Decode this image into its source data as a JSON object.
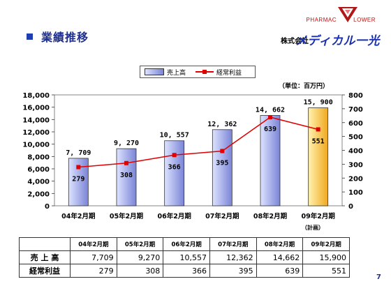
{
  "header": {
    "title": "業績推移",
    "logo_top_left": "PHARMAC",
    "logo_top_right": "LOWER",
    "company_prefix": "株式会社",
    "company_name": "メディカル一光"
  },
  "colors": {
    "bar_fill_start": "#dde3ff",
    "bar_fill_end": "#7a84d6",
    "bar_plan_start": "#fff2b0",
    "bar_plan_end": "#f0a81e",
    "line": "#e00000",
    "title": "#1f2f8f",
    "company": "#1a2fb0"
  },
  "unit_label": "（単位：百万円）",
  "plan_note": "（計画）",
  "page_number": "7",
  "chart_data": {
    "type": "bar",
    "categories": [
      "04年2月期",
      "05年2月期",
      "06年2月期",
      "07年2月期",
      "08年2月期",
      "09年2月期"
    ],
    "series": [
      {
        "name": "売上高",
        "type": "bar",
        "axis": "left",
        "values": [
          7709,
          9270,
          10557,
          12362,
          14662,
          15900
        ],
        "labels": [
          "7, 709",
          "9, 270",
          "10, 557",
          "12, 362",
          "14, 662",
          "15, 900"
        ]
      },
      {
        "name": "経常利益",
        "type": "line",
        "axis": "right",
        "values": [
          279,
          308,
          366,
          395,
          639,
          551
        ],
        "labels": [
          "279",
          "308",
          "366",
          "395",
          "639",
          "551"
        ]
      }
    ],
    "highlight_index": 5,
    "y_left": {
      "min": 0,
      "max": 18000,
      "step": 2000,
      "ticks": [
        "0",
        "2,000",
        "4,000",
        "6,000",
        "8,000",
        "10,000",
        "12,000",
        "14,000",
        "16,000",
        "18,000"
      ]
    },
    "y_right": {
      "min": 0,
      "max": 800,
      "step": 100,
      "ticks": [
        "0",
        "100",
        "200",
        "300",
        "400",
        "500",
        "600",
        "700",
        "800"
      ]
    },
    "legend_position": "top-center",
    "grid": false
  },
  "table": {
    "columns": [
      "04年2月期",
      "05年2月期",
      "06年2月期",
      "07年2月期",
      "08年2月期",
      "09年2月期"
    ],
    "rows": [
      {
        "label": "売 上 高",
        "values": [
          "7,709",
          "9,270",
          "10,557",
          "12,362",
          "14,662",
          "15,900"
        ]
      },
      {
        "label": "経常利益",
        "values": [
          "279",
          "308",
          "366",
          "395",
          "639",
          "551"
        ]
      }
    ]
  }
}
